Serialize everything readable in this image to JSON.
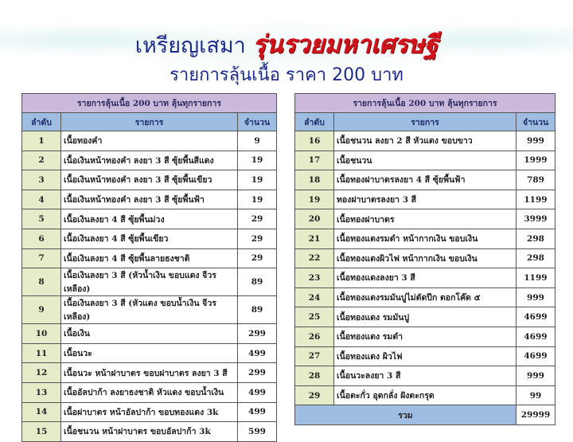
{
  "title": {
    "prefix": "เหรียญเสมา",
    "highlight": "รุ่นรวยมหาเศรษฐี"
  },
  "subtitle": "รายการลุ้นเนื้อ ราคา 200 บาท",
  "colors": {
    "title": "#1d2c8c",
    "highlight": "#d4141c",
    "caption_bg": "#cbb9dc",
    "header_bg": "#9fbde0",
    "number_bg": "#e5ecc9"
  },
  "tables": [
    {
      "caption": "รายการลุ้นเนื้อ 200 บาท ลุ้นทุกรายการ",
      "headers": [
        "ลำดับ",
        "รายการ",
        "จำนวน"
      ],
      "rows": [
        [
          "1",
          "เนื้อทองคำ",
          "9"
        ],
        [
          "2",
          "เนื้อเงินหน้าทองคำ ลงยา 3 สี ซุ้ยพื้นสีแดง",
          "19"
        ],
        [
          "3",
          "เนื้อเงินหน้าทองคำ ลงยา 3 สี ซุ้ยพื้นเขียว",
          "19"
        ],
        [
          "4",
          "เนื้อเงินหน้าทองคำ ลงยา 3 สี ซุ้ยพื้นฟ้า",
          "19"
        ],
        [
          "5",
          "เนื้อเงินลงยา 4 สี ซุ้ยพื้นม่วง",
          "29"
        ],
        [
          "6",
          "เนื้อเงินลงยา 4 สี ซุ้ยพื้นเขียว",
          "29"
        ],
        [
          "7",
          "เนื้อเงินลงยา 4 สี ซุ้ยพื้นลายธงชาติ",
          "29"
        ],
        [
          "8",
          "เนื้อเงินลงยา 3 สี (หัวน้ำเงิน ขอบแดง จีวรเหลือง)",
          "89"
        ],
        [
          "9",
          "เนื้อเงินลงยา 3 สี (หัวแดง ขอบน้ำเงิน จีวรเหลือง)",
          "89"
        ],
        [
          "10",
          "เนื้อเงิน",
          "299"
        ],
        [
          "11",
          "เนื้อนวะ",
          "499"
        ],
        [
          "12",
          "เนื้อนวะ หน้าฝาบาตร ขอบฝาบาตร ลงยา 3 สี",
          "299"
        ],
        [
          "13",
          "เนื้ออัลปาก้า ลงยาธงชาติ หัวแดง ขอบน้ำเงิน",
          "499"
        ],
        [
          "14",
          "เนื้อฝาบาตร หน้าอัลปาก้า ขอบทองแดง 3k",
          "499"
        ],
        [
          "15",
          "เนื้อชนวน หน้าฝาบาตร ขอบอัลปาก้า 3k",
          "599"
        ]
      ]
    },
    {
      "caption": "รายการลุ้นเนื้อ 200 บาท ลุ้นทุกรายการ",
      "headers": [
        "ลำดับ",
        "รายการ",
        "จำนวน"
      ],
      "rows": [
        [
          "16",
          "เนื้อชนวน ลงยา 2 สี หัวแดง ขอบขาว",
          "999"
        ],
        [
          "17",
          "เนื้อชนวน",
          "1999"
        ],
        [
          "18",
          "เนื้อทองฝาบาตรลงยา 4 สี ซุ้ยพื้นฟ้า",
          "789"
        ],
        [
          "19",
          "ทองฝาบาตรลงยา 3 สี",
          "1199"
        ],
        [
          "20",
          "เนื้อทองฝาบาตร",
          "3999"
        ],
        [
          "21",
          "เนื้อทองแดงรมดำ หน้ากากเงิน ขอบเงิน",
          "298"
        ],
        [
          "22",
          "เนื้อทองแดงผิวไฟ หน้ากากเงิน ขอบเงิน",
          "298"
        ],
        [
          "23",
          "เนื้อทองแดงลงยา 3 สี",
          "1199"
        ],
        [
          "24",
          "เนื้อทองแดงรมมันปูไม่ตัดปีก ตอกโค๊ด ๕",
          "999"
        ],
        [
          "25",
          "เนื้อทองแดง รมมันปู",
          "4699"
        ],
        [
          "26",
          "เนื้อทองแดง รมดำ",
          "4699"
        ],
        [
          "27",
          "เนื้อทองแดง ผิวไฟ",
          "4699"
        ],
        [
          "28",
          "เนื้อนวะลงยา 3 สี",
          "999"
        ],
        [
          "29",
          "เนื้อตะกั่ว อุดกลั่ง ฝังตะกรุด",
          "99"
        ]
      ],
      "total": {
        "label": "รวม",
        "value": "29999"
      }
    }
  ]
}
